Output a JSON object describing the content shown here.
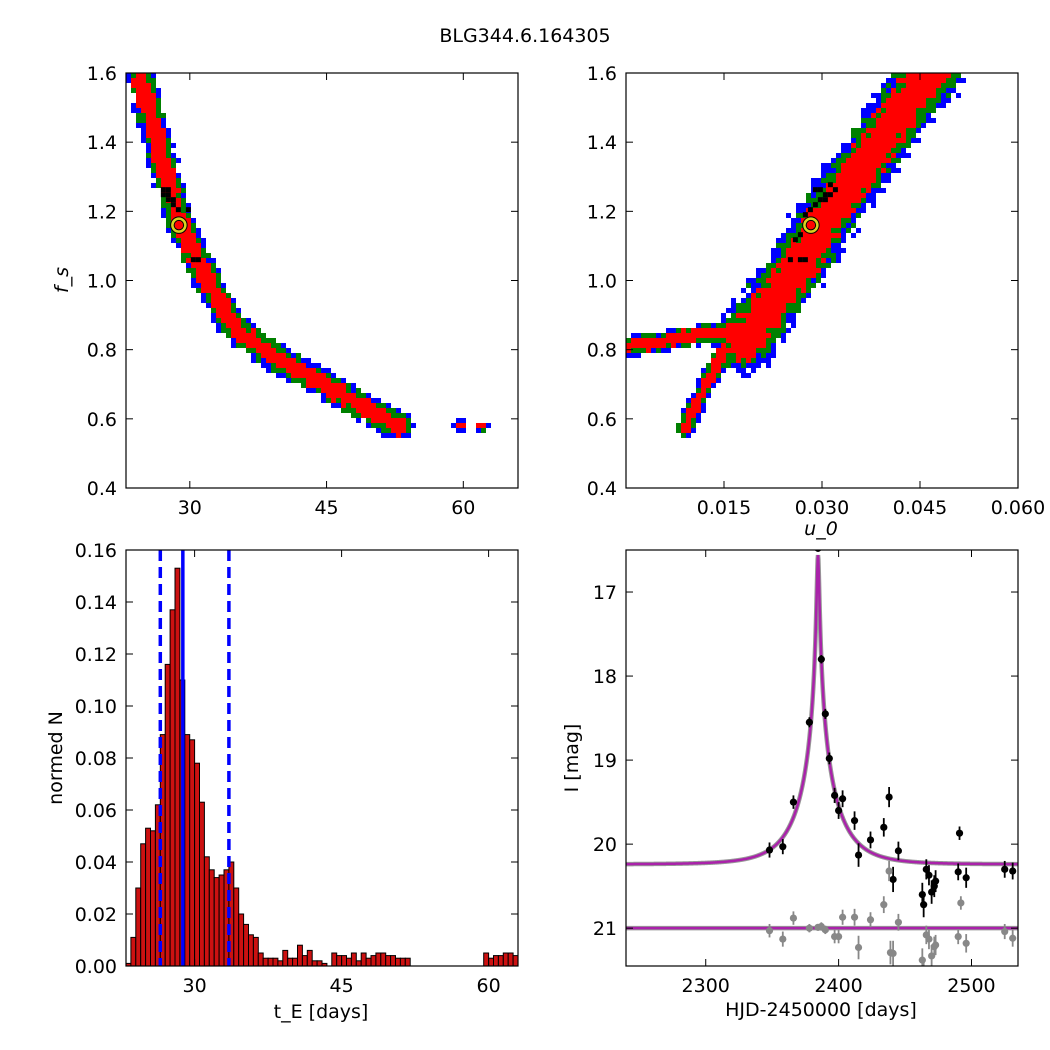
{
  "figure": {
    "title": "BLG344.6.164305"
  },
  "chart_data": [
    {
      "id": "panel-fs-vs-tE",
      "type": "heatmap",
      "title": "",
      "xlabel": "",
      "ylabel": "f_s",
      "xlim": [
        23,
        66
      ],
      "ylim": [
        0.4,
        1.6
      ],
      "xticks": [
        30,
        45,
        60
      ],
      "xtick_labels": [
        "30",
        "45",
        "60"
      ],
      "yticks": [
        0.4,
        0.6,
        0.8,
        1.0,
        1.2,
        1.4,
        1.6
      ],
      "ytick_labels": [
        "0.4",
        "0.6",
        "0.8",
        "1.0",
        "1.2",
        "1.4",
        "1.6"
      ],
      "confidence_colors": [
        "#0000ff",
        "#008000",
        "#ff0000",
        "#000000"
      ],
      "ridge": [
        [
          24.5,
          1.6
        ],
        [
          26,
          1.45
        ],
        [
          27.5,
          1.3
        ],
        [
          29,
          1.16
        ],
        [
          31,
          1.05
        ],
        [
          33,
          0.95
        ],
        [
          35,
          0.86
        ],
        [
          38,
          0.8
        ],
        [
          42,
          0.74
        ],
        [
          46,
          0.68
        ],
        [
          50,
          0.62
        ],
        [
          53,
          0.58
        ]
      ],
      "islands": [
        [
          59.5,
          0.58
        ],
        [
          62,
          0.58
        ]
      ],
      "best_fit": {
        "x": 28.8,
        "y": 1.16
      }
    },
    {
      "id": "panel-fs-vs-u0",
      "type": "heatmap",
      "title": "",
      "xlabel": "u_0",
      "ylabel": "",
      "xlim": [
        0.0,
        0.06
      ],
      "ylim": [
        0.4,
        1.6
      ],
      "xticks": [
        0.015,
        0.03,
        0.045,
        0.06
      ],
      "xtick_labels": [
        "0.015",
        "0.030",
        "0.045",
        "0.060"
      ],
      "yticks": [
        0.4,
        0.6,
        0.8,
        1.0,
        1.2,
        1.4,
        1.6
      ],
      "ytick_labels": [
        "0.4",
        "0.6",
        "0.8",
        "1.0",
        "1.2",
        "1.4",
        "1.6"
      ],
      "confidence_colors": [
        "#0000ff",
        "#008000",
        "#ff0000",
        "#000000"
      ],
      "main_band": [
        [
          0.018,
          0.82
        ],
        [
          0.022,
          0.93
        ],
        [
          0.026,
          1.03
        ],
        [
          0.029,
          1.13
        ],
        [
          0.032,
          1.22
        ],
        [
          0.035,
          1.3
        ],
        [
          0.038,
          1.38
        ],
        [
          0.041,
          1.46
        ],
        [
          0.044,
          1.54
        ],
        [
          0.047,
          1.6
        ]
      ],
      "lower_arm": [
        [
          0.0,
          0.81
        ],
        [
          0.005,
          0.82
        ],
        [
          0.01,
          0.84
        ],
        [
          0.014,
          0.85
        ],
        [
          0.018,
          0.86
        ]
      ],
      "lower_branch": [
        [
          0.009,
          0.57
        ],
        [
          0.011,
          0.65
        ],
        [
          0.013,
          0.73
        ],
        [
          0.015,
          0.8
        ]
      ],
      "best_fit": {
        "x": 0.0283,
        "y": 1.16
      }
    },
    {
      "id": "panel-tE-histogram",
      "type": "bar",
      "title": "",
      "xlabel": "t_E [days]",
      "ylabel": "normed N",
      "xlim": [
        23,
        63
      ],
      "ylim": [
        0.0,
        0.16
      ],
      "xticks": [
        30,
        45,
        60
      ],
      "xtick_labels": [
        "30",
        "45",
        "60"
      ],
      "yticks": [
        0.0,
        0.02,
        0.04,
        0.06,
        0.08,
        0.1,
        0.12,
        0.14,
        0.16
      ],
      "ytick_labels": [
        "0.00",
        "0.02",
        "0.04",
        "0.06",
        "0.08",
        "0.10",
        "0.12",
        "0.14",
        "0.16"
      ],
      "bin_width": 0.5,
      "bin_start": 23.0,
      "values": [
        0.001,
        0.011,
        0.03,
        0.047,
        0.053,
        0.052,
        0.062,
        0.089,
        0.116,
        0.137,
        0.153,
        0.11,
        0.089,
        0.087,
        0.078,
        0.063,
        0.042,
        0.037,
        0.034,
        0.035,
        0.037,
        0.04,
        0.03,
        0.02,
        0.016,
        0.012,
        0.011,
        0.005,
        0.003,
        0.003,
        0.003,
        0.002,
        0.006,
        0.003,
        0.003,
        0.008,
        0.004,
        0.006,
        0.002,
        0.002,
        0.001,
        0.0,
        0.005,
        0.004,
        0.004,
        0.003,
        0.005,
        0.002,
        0.005,
        0.003,
        0.004,
        0.005,
        0.005,
        0.004,
        0.004,
        0.003,
        0.003,
        0.003,
        0.0,
        0.0,
        0.0,
        0.0,
        0.0,
        0.0,
        0.0,
        0.0,
        0.0,
        0.0,
        0.0,
        0.0,
        0.0,
        0.0,
        0.0,
        0.005,
        0.003,
        0.004,
        0.004,
        0.005,
        0.005,
        0.004
      ],
      "bar_color": "#cc1111",
      "median_line": 28.8,
      "interval_lines": [
        26.5,
        33.5
      ]
    },
    {
      "id": "panel-light-curve",
      "type": "scatter",
      "title": "",
      "xlabel": "HJD-2450000 [days]",
      "ylabel": "I [mag]",
      "xlim": [
        2240,
        2535
      ],
      "ylim": [
        21.45,
        16.5
      ],
      "xticks": [
        2300,
        2400,
        2500
      ],
      "xtick_labels": [
        "2300",
        "2400",
        "2500"
      ],
      "yticks": [
        17,
        18,
        19,
        20,
        21
      ],
      "ytick_labels": [
        "17",
        "18",
        "19",
        "20",
        "21"
      ],
      "model": {
        "t0": 2384.5,
        "u0": 0.029,
        "tE": 28.8,
        "I_source": 20.41,
        "I_baseline": 20.24,
        "color": "#aa22aa"
      },
      "residual_baseline": 21.0,
      "series": [
        {
          "kind": "data",
          "color": "#000000",
          "points": [
            {
              "x": 2348,
              "y": 20.07,
              "e": 0.09
            },
            {
              "x": 2358,
              "y": 20.03,
              "e": 0.09
            },
            {
              "x": 2366,
              "y": 19.5,
              "e": 0.08
            },
            {
              "x": 2378,
              "y": 18.55,
              "e": 0.06
            },
            {
              "x": 2384.5,
              "y": 16.48,
              "e": 0.04
            },
            {
              "x": 2387,
              "y": 17.8,
              "e": 0.05
            },
            {
              "x": 2390,
              "y": 18.45,
              "e": 0.06
            },
            {
              "x": 2393,
              "y": 18.98,
              "e": 0.07
            },
            {
              "x": 2397,
              "y": 19.42,
              "e": 0.09
            },
            {
              "x": 2400,
              "y": 19.6,
              "e": 0.1
            },
            {
              "x": 2403,
              "y": 19.46,
              "e": 0.1
            },
            {
              "x": 2412,
              "y": 19.72,
              "e": 0.11
            },
            {
              "x": 2415,
              "y": 20.13,
              "e": 0.14
            },
            {
              "x": 2424,
              "y": 19.95,
              "e": 0.1
            },
            {
              "x": 2434,
              "y": 19.8,
              "e": 0.11
            },
            {
              "x": 2438,
              "y": 19.44,
              "e": 0.12
            },
            {
              "x": 2441,
              "y": 20.42,
              "e": 0.15
            },
            {
              "x": 2445,
              "y": 20.08,
              "e": 0.11
            },
            {
              "x": 2463,
              "y": 20.6,
              "e": 0.14
            },
            {
              "x": 2464,
              "y": 20.72,
              "e": 0.15
            },
            {
              "x": 2466,
              "y": 20.3,
              "e": 0.12
            },
            {
              "x": 2468,
              "y": 20.37,
              "e": 0.12
            },
            {
              "x": 2470,
              "y": 20.57,
              "e": 0.14
            },
            {
              "x": 2472,
              "y": 20.5,
              "e": 0.13
            },
            {
              "x": 2473,
              "y": 20.44,
              "e": 0.13
            },
            {
              "x": 2490,
              "y": 20.33,
              "e": 0.1
            },
            {
              "x": 2491,
              "y": 19.87,
              "e": 0.08
            },
            {
              "x": 2496,
              "y": 20.4,
              "e": 0.12
            },
            {
              "x": 2525,
              "y": 20.3,
              "e": 0.1
            },
            {
              "x": 2531,
              "y": 20.32,
              "e": 0.1
            }
          ]
        },
        {
          "kind": "residuals",
          "color": "#888888",
          "points": [
            {
              "x": 2348,
              "y": 21.03,
              "e": 0.08
            },
            {
              "x": 2358,
              "y": 21.13,
              "e": 0.09
            },
            {
              "x": 2366,
              "y": 20.88,
              "e": 0.08
            },
            {
              "x": 2378,
              "y": 21.0,
              "e": 0.05
            },
            {
              "x": 2384.5,
              "y": 20.99,
              "e": 0.03
            },
            {
              "x": 2387,
              "y": 20.98,
              "e": 0.05
            },
            {
              "x": 2390,
              "y": 21.02,
              "e": 0.05
            },
            {
              "x": 2397,
              "y": 21.1,
              "e": 0.08
            },
            {
              "x": 2400,
              "y": 21.1,
              "e": 0.08
            },
            {
              "x": 2403,
              "y": 20.87,
              "e": 0.09
            },
            {
              "x": 2412,
              "y": 20.87,
              "e": 0.1
            },
            {
              "x": 2415,
              "y": 21.23,
              "e": 0.14
            },
            {
              "x": 2424,
              "y": 20.9,
              "e": 0.09
            },
            {
              "x": 2434,
              "y": 20.72,
              "e": 0.1
            },
            {
              "x": 2438,
              "y": 20.32,
              "e": 0.12
            },
            {
              "x": 2439,
              "y": 21.29,
              "e": 0.14
            },
            {
              "x": 2441,
              "y": 21.3,
              "e": 0.15
            },
            {
              "x": 2445,
              "y": 20.93,
              "e": 0.1
            },
            {
              "x": 2463,
              "y": 21.38,
              "e": 0.14
            },
            {
              "x": 2464,
              "y": 21.5,
              "e": 0.15
            },
            {
              "x": 2466,
              "y": 21.08,
              "e": 0.11
            },
            {
              "x": 2468,
              "y": 21.13,
              "e": 0.12
            },
            {
              "x": 2470,
              "y": 21.33,
              "e": 0.13
            },
            {
              "x": 2472,
              "y": 21.22,
              "e": 0.12
            },
            {
              "x": 2473,
              "y": 21.2,
              "e": 0.12
            },
            {
              "x": 2490,
              "y": 21.1,
              "e": 0.09
            },
            {
              "x": 2492,
              "y": 20.7,
              "e": 0.08
            },
            {
              "x": 2496,
              "y": 21.18,
              "e": 0.11
            },
            {
              "x": 2525,
              "y": 21.04,
              "e": 0.09
            },
            {
              "x": 2531,
              "y": 21.12,
              "e": 0.1
            }
          ]
        }
      ]
    }
  ]
}
